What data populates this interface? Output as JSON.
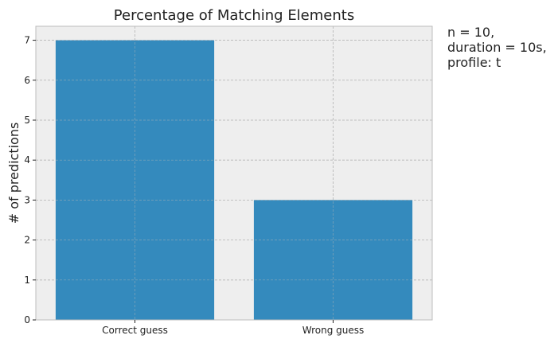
{
  "chart_data": {
    "type": "bar",
    "title": "Percentage of Matching Elements",
    "categories": [
      "Correct guess",
      "Wrong guess"
    ],
    "values": [
      7,
      3
    ],
    "xlabel": "",
    "ylabel": "# of predictions",
    "ylim": [
      0,
      7.35
    ],
    "yticks": [
      0,
      1,
      2,
      3,
      4,
      5,
      6,
      7
    ],
    "grid": true,
    "annotation": [
      "n = 10,",
      "duration = 10s,",
      "profile: t"
    ],
    "colors": {
      "bar": "#348abd",
      "plot_background": "#eeeeee",
      "grid": "#b8b8b8",
      "spine": "#bcbcbc",
      "text": "#222222"
    }
  }
}
